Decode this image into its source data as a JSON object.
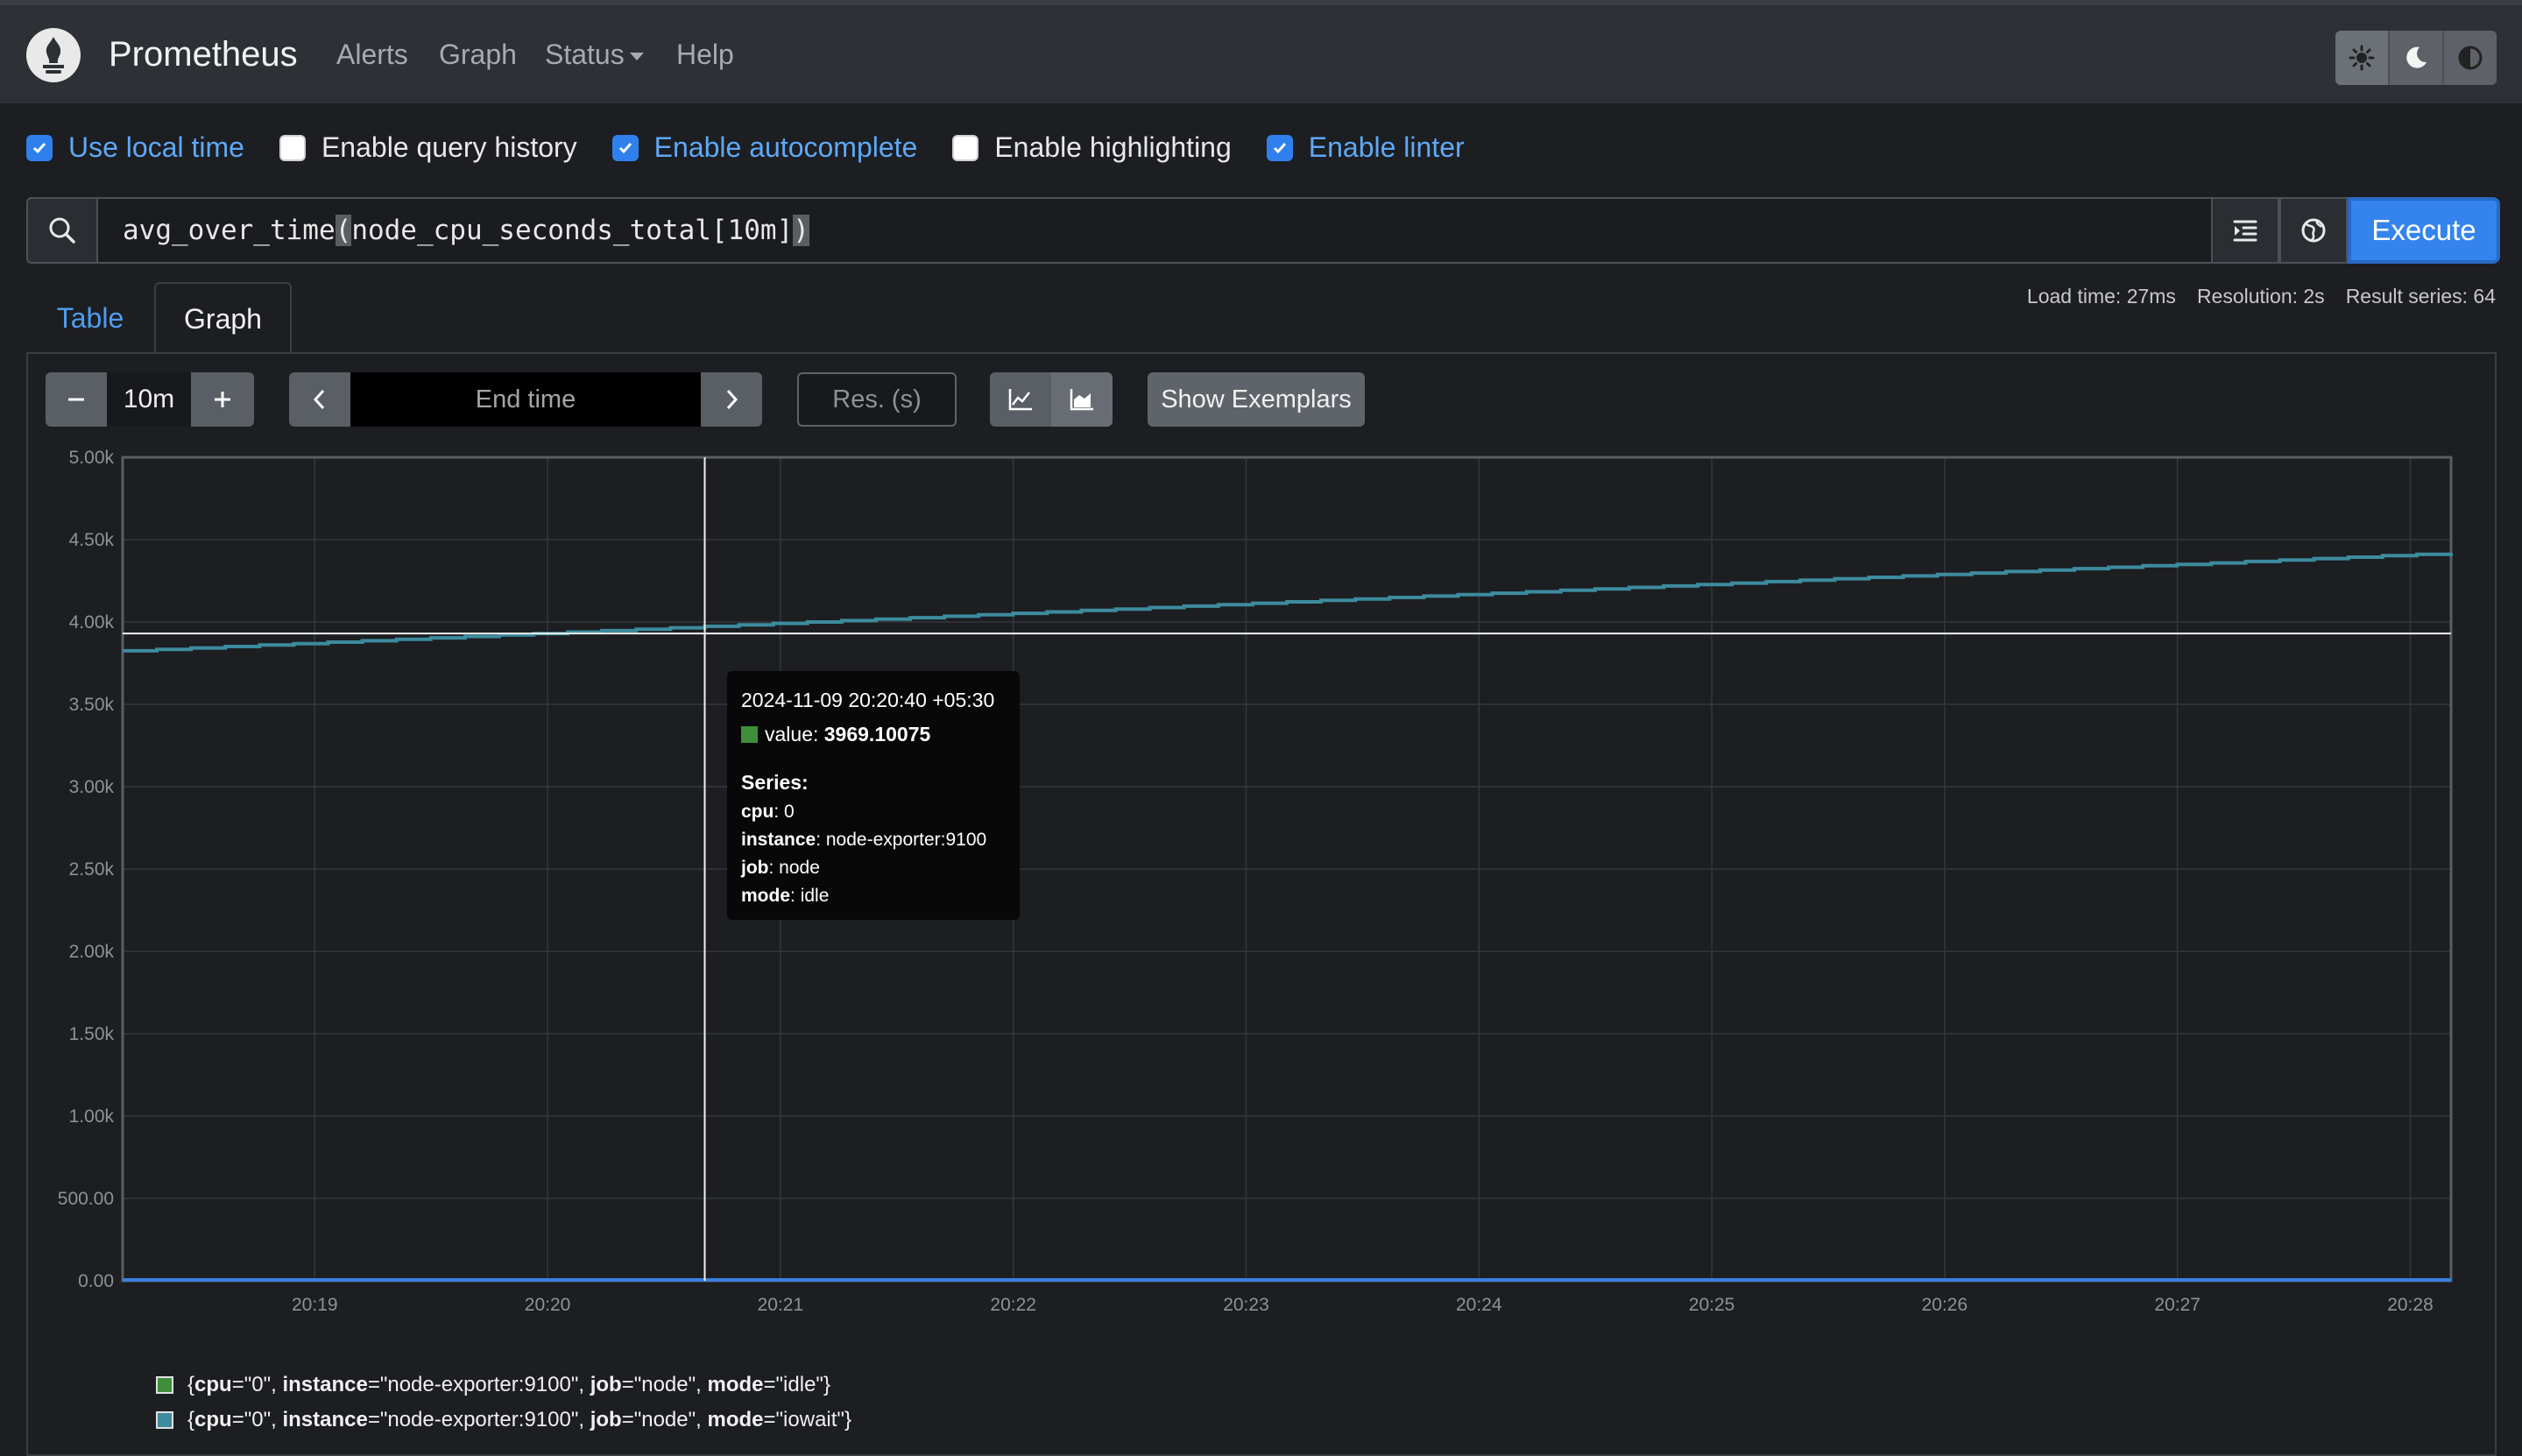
{
  "app": {
    "brand": "Prometheus",
    "nav": {
      "alerts": "Alerts",
      "graph": "Graph",
      "status": "Status",
      "help": "Help"
    },
    "theme_buttons": [
      "sun-icon",
      "moon-icon",
      "contrast-icon"
    ]
  },
  "options": [
    {
      "label": "Use local time",
      "checked": true
    },
    {
      "label": "Enable query history",
      "checked": false
    },
    {
      "label": "Enable autocomplete",
      "checked": true
    },
    {
      "label": "Enable highlighting",
      "checked": false
    },
    {
      "label": "Enable linter",
      "checked": true
    }
  ],
  "query": {
    "func": "avg_over_time",
    "open": "(",
    "arg": "node_cpu_seconds_total[10m]",
    "close": ")",
    "execute_label": "Execute"
  },
  "tabs": {
    "table": "Table",
    "graph": "Graph"
  },
  "stats": {
    "load_time": "Load time: 27ms",
    "resolution": "Resolution: 2s",
    "result_series": "Result series: 64"
  },
  "graph_controls": {
    "range": "10m",
    "end_time_placeholder": "End time",
    "res_placeholder": "Res. (s)",
    "exemplars_label": "Show Exemplars"
  },
  "chart_data": {
    "type": "line",
    "y_tick_labels": [
      "0.00",
      "500.00",
      "1.00k",
      "1.50k",
      "2.00k",
      "2.50k",
      "3.00k",
      "3.50k",
      "4.00k",
      "4.50k",
      "5.00k"
    ],
    "ylim": [
      0,
      5000
    ],
    "x_tick_labels": [
      "20:19",
      "20:20",
      "20:21",
      "20:22",
      "20:23",
      "20:24",
      "20:25",
      "20:26",
      "20:27",
      "20:28"
    ],
    "x_tick_minutes": [
      19,
      20,
      21,
      22,
      23,
      24,
      25,
      26,
      27,
      28
    ],
    "xlim_minutes": [
      18.175,
      28.175
    ],
    "grid": true,
    "series": [
      {
        "legend": {
          "cpu": "\"0\"",
          "instance": "\"node-exporter:9100\"",
          "job": "\"node\"",
          "mode": "\"idle\""
        },
        "color": "#3f8f3a",
        "start_value": 3825,
        "end_value": 4420
      },
      {
        "legend": {
          "cpu": "\"0\"",
          "instance": "\"node-exporter:9100\"",
          "job": "\"node\"",
          "mode": "\"iowait\""
        },
        "color": "#3d8b9e",
        "start_value": 0,
        "end_value": 0
      }
    ],
    "line_color": "#3d8b9e",
    "hover_minute": 20.675,
    "hover_value": 3930
  },
  "tooltip": {
    "time": "2024-11-09 20:20:40 +05:30",
    "value_label": "value:",
    "value": "3969.10075",
    "series_label": "Series:",
    "rows": [
      {
        "key": "cpu",
        "value": "0"
      },
      {
        "key": "instance",
        "value": "node-exporter:9100"
      },
      {
        "key": "job",
        "value": "node"
      },
      {
        "key": "mode",
        "value": "idle"
      }
    ]
  }
}
